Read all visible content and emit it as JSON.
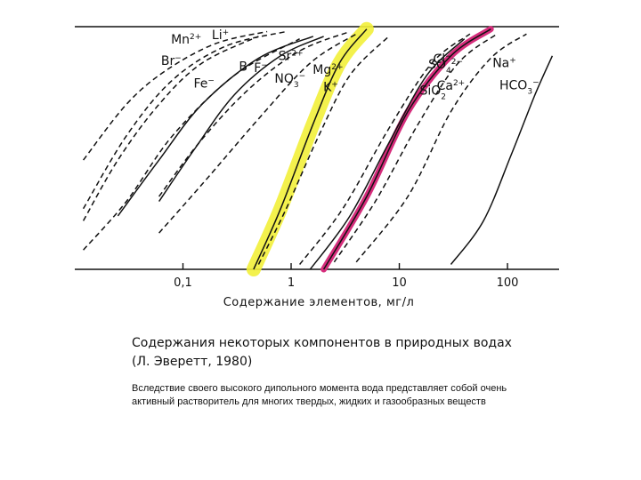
{
  "slide": {
    "title": "Содержания некоторых компонентов в природных водах (Л. Эверетт, 1980)",
    "body": "Вследствие своего высокого дипольного момента вода представляет собой очень активный растворитель для многих твердых, жидких и газообразных веществ"
  },
  "chart_data": {
    "type": "line",
    "title": "",
    "xlabel": "Содержание элементов, мг/л",
    "ylabel": "",
    "xscale": "log",
    "xlim": [
      0.01,
      300
    ],
    "ylim": [
      0,
      1
    ],
    "x_ticks": [
      {
        "label": "0,1",
        "value": 0.1
      },
      {
        "label": "1",
        "value": 1
      },
      {
        "label": "10",
        "value": 10
      },
      {
        "label": "100",
        "value": 100
      }
    ],
    "grid": false,
    "colors": {
      "line": "#111111",
      "highlight_yellow": "#f2ef3a",
      "highlight_magenta": "#d62d7c"
    },
    "series": [
      {
        "name": "Mn2+",
        "label": "Mn",
        "charge": "2+",
        "style": "dashed",
        "x": [
          0.012,
          0.03,
          0.07,
          0.2,
          0.6
        ],
        "y": [
          0.45,
          0.68,
          0.82,
          0.93,
          0.98
        ]
      },
      {
        "name": "Li+",
        "label": "Li",
        "charge": "+",
        "style": "dashed",
        "x": [
          0.012,
          0.03,
          0.08,
          0.25,
          0.9
        ],
        "y": [
          0.25,
          0.55,
          0.78,
          0.92,
          0.98
        ]
      },
      {
        "name": "B",
        "label": "B",
        "charge": "",
        "style": "solid",
        "x": [
          0.025,
          0.06,
          0.15,
          0.5,
          1.6
        ],
        "y": [
          0.22,
          0.45,
          0.68,
          0.87,
          0.96
        ]
      },
      {
        "name": "Sr2+",
        "label": "Sr",
        "charge": "2+",
        "style": "dashed",
        "x": [
          0.06,
          0.14,
          0.4,
          1.2,
          3.5
        ],
        "y": [
          0.3,
          0.52,
          0.74,
          0.9,
          0.98
        ]
      },
      {
        "name": "Br-",
        "label": "Br",
        "charge": "−",
        "style": "dashed",
        "x": [
          0.012,
          0.025,
          0.06,
          0.15,
          0.5
        ],
        "y": [
          0.2,
          0.45,
          0.68,
          0.85,
          0.96
        ]
      },
      {
        "name": "F-",
        "label": "F",
        "charge": "−",
        "style": "solid",
        "x": [
          0.06,
          0.13,
          0.3,
          0.8,
          2.0
        ],
        "y": [
          0.28,
          0.5,
          0.72,
          0.88,
          0.96
        ]
      },
      {
        "name": "Fe-",
        "label": "Fe",
        "charge": "−",
        "style": "dashed",
        "x": [
          0.012,
          0.03,
          0.08,
          0.3,
          1.2
        ],
        "y": [
          0.08,
          0.28,
          0.55,
          0.8,
          0.95
        ]
      },
      {
        "name": "NO3-",
        "label": "NO",
        "sub": "3",
        "charge": "−",
        "style": "dashed",
        "x": [
          0.06,
          0.15,
          0.5,
          1.5,
          4.0
        ],
        "y": [
          0.15,
          0.35,
          0.62,
          0.85,
          0.97
        ]
      },
      {
        "name": "K+",
        "label": "K",
        "charge": "+",
        "style": "dashed",
        "x": [
          0.5,
          0.9,
          1.8,
          3.5,
          8.0
        ],
        "y": [
          0.02,
          0.25,
          0.55,
          0.8,
          0.96
        ]
      },
      {
        "name": "Mg2+",
        "label": "Mg",
        "charge": "2+",
        "style": "solid",
        "x": [
          0.45,
          0.8,
          1.6,
          2.8,
          5.0
        ],
        "y": [
          0.0,
          0.25,
          0.6,
          0.85,
          0.99
        ]
      },
      {
        "name": "SO42-",
        "label": "SO",
        "sub": "4",
        "charge": "2−",
        "style": "dashed",
        "x": [
          1.2,
          3.0,
          8.0,
          20.0,
          45.0
        ],
        "y": [
          0.02,
          0.25,
          0.58,
          0.85,
          0.97
        ]
      },
      {
        "name": "SiO2",
        "label": "SiO",
        "sub": "2",
        "charge": "",
        "style": "solid",
        "x": [
          1.5,
          3.5,
          8.0,
          18.0,
          40.0
        ],
        "y": [
          0.0,
          0.22,
          0.52,
          0.8,
          0.95
        ]
      },
      {
        "name": "Cl-",
        "label": "Cl",
        "charge": "−",
        "style": "solid",
        "x": [
          2.0,
          5.0,
          12.0,
          30.0,
          70.0
        ],
        "y": [
          0.0,
          0.3,
          0.65,
          0.88,
          0.99
        ]
      },
      {
        "name": "Ca2+",
        "label": "Ca",
        "charge": "2+",
        "style": "dashed",
        "x": [
          2.5,
          6.0,
          15.0,
          35.0,
          80.0
        ],
        "y": [
          0.03,
          0.28,
          0.6,
          0.85,
          0.97
        ]
      },
      {
        "name": "Na+",
        "label": "Na",
        "charge": "+",
        "style": "dashed",
        "x": [
          4.0,
          12.0,
          30.0,
          70.0,
          150.0
        ],
        "y": [
          0.03,
          0.3,
          0.65,
          0.87,
          0.97
        ]
      },
      {
        "name": "HCO3-",
        "label": "HCO",
        "sub": "3",
        "charge": "−",
        "style": "solid",
        "x": [
          30.0,
          60.0,
          110.0,
          180.0,
          260.0
        ],
        "y": [
          0.02,
          0.2,
          0.48,
          0.72,
          0.88
        ]
      }
    ],
    "highlights": [
      {
        "color": "yellow",
        "series": "Mg2+"
      },
      {
        "color": "magenta",
        "series": "Cl-"
      }
    ]
  }
}
